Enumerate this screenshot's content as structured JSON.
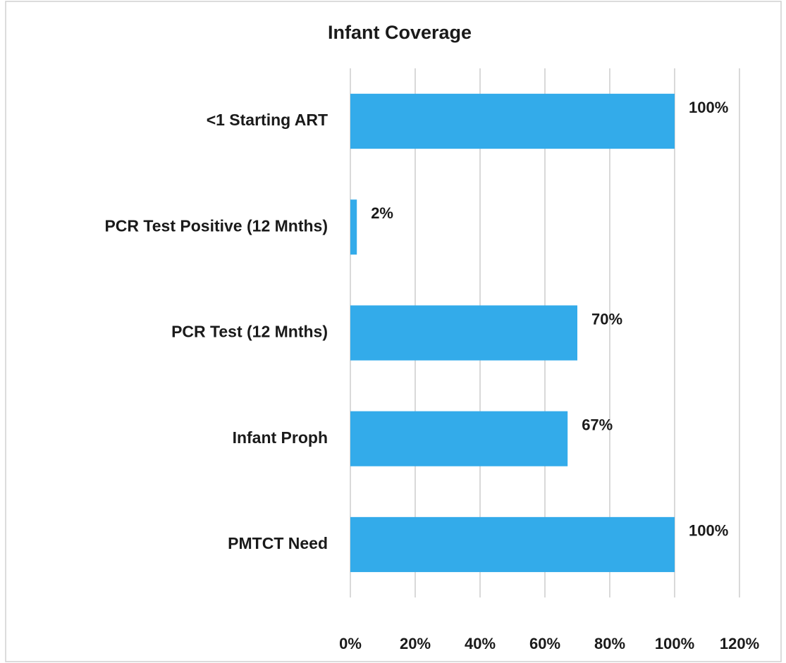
{
  "chart_data": {
    "type": "bar",
    "orientation": "horizontal",
    "title": "Infant Coverage",
    "categories": [
      "<1 Starting ART",
      "PCR Test Positive (12 Mnths)",
      "PCR Test (12 Mnths)",
      "Infant Proph",
      "PMTCT Need"
    ],
    "values": [
      100,
      2,
      70,
      67,
      100
    ],
    "value_labels": [
      "100%",
      "2%",
      "70%",
      "67%",
      "100%"
    ],
    "color": "#33abea",
    "xlim": [
      0,
      120
    ],
    "xticks": [
      {
        "value": 0,
        "label": "0%"
      },
      {
        "value": 20,
        "label": "20%"
      },
      {
        "value": 40,
        "label": "40%"
      },
      {
        "value": 60,
        "label": "60%"
      },
      {
        "value": 80,
        "label": "80%"
      },
      {
        "value": 100,
        "label": "100%"
      },
      {
        "value": 120,
        "label": "120%"
      }
    ],
    "grid": true
  }
}
